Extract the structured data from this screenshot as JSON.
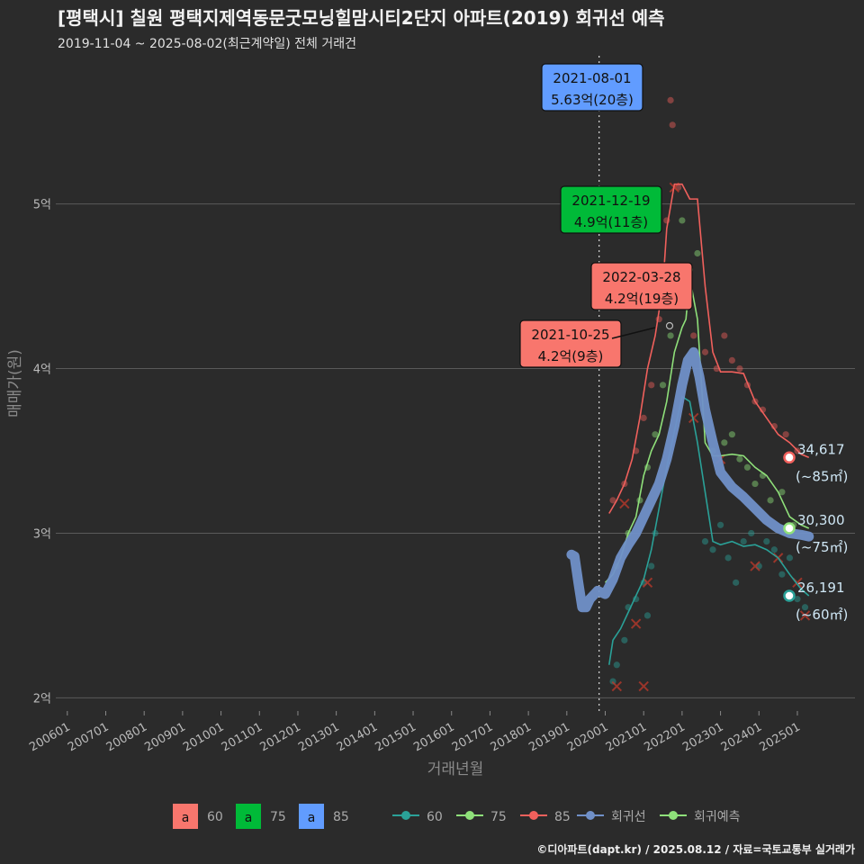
{
  "title": "[평택시] 칠원 평택지제역동문굿모닝힐맘시티2단지 아파트(2019) 회귀선 예측",
  "subtitle": "2019-11-04 ~ 2025-08-02(최근계약일) 전체 거래건",
  "credit": "©디아파트(dapt.kr) / 2025.08.12 / 자료=국토교통부 실거래가",
  "colors": {
    "s60": "#2aa198",
    "s75": "#8fe07a",
    "s85": "#f0605c",
    "regression": "#7090c8",
    "box_blue": "#619cff",
    "box_green": "#00ba38",
    "box_red": "#f8766d"
  },
  "chart_data": {
    "type": "scatter",
    "title": "[평택시] 칠원 평택지제역동문굿모닝힐맘시티2단지 아파트(2019) 회귀선 예측",
    "xlabel": "거래년월",
    "ylabel": "매매가(원)",
    "xlim": [
      2005.7,
      2026.5
    ],
    "ylim": [
      1.92,
      5.9
    ],
    "x_ticks": [
      "200601",
      "200701",
      "200801",
      "200901",
      "201001",
      "201101",
      "201201",
      "201301",
      "201401",
      "201501",
      "201601",
      "201701",
      "201801",
      "201901",
      "202001",
      "202101",
      "202201",
      "202301",
      "202401",
      "202501"
    ],
    "y_ticks": [
      {
        "v": 2,
        "label": "2억"
      },
      {
        "v": 3,
        "label": "3억"
      },
      {
        "v": 4,
        "label": "4억"
      },
      {
        "v": 5,
        "label": "5억"
      }
    ],
    "ref_line_x": 2019.84,
    "series": [
      {
        "name": "60",
        "color_key": "s60",
        "line": [
          [
            2020.1,
            2.2
          ],
          [
            2020.2,
            2.35
          ],
          [
            2020.4,
            2.42
          ],
          [
            2020.6,
            2.52
          ],
          [
            2020.8,
            2.62
          ],
          [
            2021.0,
            2.72
          ],
          [
            2021.2,
            2.9
          ],
          [
            2021.4,
            3.15
          ],
          [
            2021.6,
            3.4
          ],
          [
            2021.8,
            3.62
          ],
          [
            2022.0,
            3.83
          ],
          [
            2022.2,
            3.8
          ],
          [
            2022.4,
            3.55
          ],
          [
            2022.6,
            3.25
          ],
          [
            2022.8,
            2.95
          ],
          [
            2023.0,
            2.93
          ],
          [
            2023.3,
            2.95
          ],
          [
            2023.6,
            2.92
          ],
          [
            2023.9,
            2.93
          ],
          [
            2024.2,
            2.9
          ],
          [
            2024.5,
            2.85
          ],
          [
            2024.8,
            2.75
          ],
          [
            2025.1,
            2.66
          ],
          [
            2025.3,
            2.62
          ]
        ],
        "points": [
          [
            2020.2,
            2.1
          ],
          [
            2020.3,
            2.2
          ],
          [
            2020.5,
            2.35
          ],
          [
            2020.6,
            2.55
          ],
          [
            2020.8,
            2.6
          ],
          [
            2021.0,
            2.7
          ],
          [
            2021.1,
            2.5
          ],
          [
            2021.2,
            2.8
          ],
          [
            2021.3,
            3.0
          ],
          [
            2022.6,
            2.95
          ],
          [
            2022.8,
            2.9
          ],
          [
            2023.0,
            3.05
          ],
          [
            2023.2,
            2.85
          ],
          [
            2023.4,
            2.7
          ],
          [
            2023.6,
            2.95
          ],
          [
            2023.8,
            3.0
          ],
          [
            2024.0,
            2.8
          ],
          [
            2024.2,
            2.95
          ],
          [
            2024.4,
            2.9
          ],
          [
            2024.6,
            2.75
          ],
          [
            2024.8,
            2.85
          ],
          [
            2025.0,
            2.6
          ],
          [
            2025.2,
            2.55
          ]
        ]
      },
      {
        "name": "75",
        "color_key": "s75",
        "line": [
          [
            2020.0,
            2.7
          ],
          [
            2020.2,
            2.75
          ],
          [
            2020.4,
            2.85
          ],
          [
            2020.6,
            3.0
          ],
          [
            2020.8,
            3.1
          ],
          [
            2021.0,
            3.35
          ],
          [
            2021.2,
            3.5
          ],
          [
            2021.4,
            3.6
          ],
          [
            2021.6,
            3.8
          ],
          [
            2021.8,
            4.1
          ],
          [
            2022.0,
            4.25
          ],
          [
            2022.1,
            4.3
          ],
          [
            2022.2,
            4.55
          ],
          [
            2022.4,
            4.3
          ],
          [
            2022.6,
            3.55
          ],
          [
            2022.8,
            3.47
          ],
          [
            2023.0,
            3.47
          ],
          [
            2023.3,
            3.48
          ],
          [
            2023.6,
            3.47
          ],
          [
            2023.9,
            3.4
          ],
          [
            2024.2,
            3.35
          ],
          [
            2024.5,
            3.25
          ],
          [
            2024.8,
            3.1
          ],
          [
            2025.1,
            3.05
          ],
          [
            2025.3,
            3.03
          ]
        ],
        "points": [
          [
            2020.3,
            2.8
          ],
          [
            2020.6,
            3.0
          ],
          [
            2020.9,
            3.2
          ],
          [
            2021.1,
            3.4
          ],
          [
            2021.3,
            3.6
          ],
          [
            2021.5,
            3.9
          ],
          [
            2021.7,
            4.2
          ],
          [
            2021.9,
            4.5
          ],
          [
            2022.0,
            4.9
          ],
          [
            2022.2,
            4.6
          ],
          [
            2022.4,
            4.7
          ],
          [
            2022.8,
            3.5
          ],
          [
            2023.1,
            3.55
          ],
          [
            2023.3,
            3.6
          ],
          [
            2023.5,
            3.45
          ],
          [
            2023.7,
            3.4
          ],
          [
            2023.9,
            3.3
          ],
          [
            2024.1,
            3.35
          ],
          [
            2024.3,
            3.2
          ],
          [
            2024.6,
            3.25
          ],
          [
            2024.9,
            3.05
          ]
        ]
      },
      {
        "name": "85",
        "color_key": "s85",
        "line": [
          [
            2020.1,
            3.12
          ],
          [
            2020.3,
            3.2
          ],
          [
            2020.5,
            3.3
          ],
          [
            2020.7,
            3.45
          ],
          [
            2020.9,
            3.7
          ],
          [
            2021.1,
            4.0
          ],
          [
            2021.3,
            4.2
          ],
          [
            2021.5,
            4.5
          ],
          [
            2021.6,
            4.85
          ],
          [
            2021.8,
            5.12
          ],
          [
            2022.0,
            5.12
          ],
          [
            2022.2,
            5.03
          ],
          [
            2022.4,
            5.03
          ],
          [
            2022.6,
            4.5
          ],
          [
            2022.8,
            4.1
          ],
          [
            2023.0,
            3.98
          ],
          [
            2023.3,
            3.98
          ],
          [
            2023.6,
            3.97
          ],
          [
            2023.9,
            3.8
          ],
          [
            2024.2,
            3.7
          ],
          [
            2024.5,
            3.6
          ],
          [
            2024.8,
            3.55
          ],
          [
            2025.1,
            3.48
          ],
          [
            2025.3,
            3.46
          ]
        ],
        "points": [
          [
            2020.2,
            3.2
          ],
          [
            2020.5,
            3.3
          ],
          [
            2020.8,
            3.5
          ],
          [
            2021.0,
            3.7
          ],
          [
            2021.2,
            3.9
          ],
          [
            2021.4,
            4.3
          ],
          [
            2021.6,
            4.9
          ],
          [
            2021.7,
            5.63
          ],
          [
            2021.75,
            5.48
          ],
          [
            2021.9,
            5.1
          ],
          [
            2022.1,
            4.6
          ],
          [
            2022.3,
            4.2
          ],
          [
            2022.6,
            4.1
          ],
          [
            2022.9,
            4.0
          ],
          [
            2023.1,
            4.2
          ],
          [
            2023.3,
            4.05
          ],
          [
            2023.5,
            4.0
          ],
          [
            2023.7,
            3.9
          ],
          [
            2023.9,
            3.8
          ],
          [
            2024.1,
            3.75
          ],
          [
            2024.4,
            3.65
          ],
          [
            2024.7,
            3.6
          ],
          [
            2025.0,
            3.5
          ]
        ]
      }
    ],
    "cross_points": [
      [
        2020.3,
        2.07
      ],
      [
        2020.5,
        3.18
      ],
      [
        2020.8,
        2.45
      ],
      [
        2021.0,
        2.07
      ],
      [
        2021.1,
        2.7
      ],
      [
        2021.8,
        5.1
      ],
      [
        2022.3,
        3.7
      ],
      [
        2023.0,
        3.45
      ],
      [
        2023.9,
        2.8
      ],
      [
        2024.5,
        2.85
      ],
      [
        2025.0,
        2.7
      ],
      [
        2025.2,
        2.5
      ]
    ],
    "regression": [
      [
        2019.12,
        2.87
      ],
      [
        2019.2,
        2.86
      ],
      [
        2019.3,
        2.7
      ],
      [
        2019.4,
        2.55
      ],
      [
        2019.5,
        2.55
      ],
      [
        2019.6,
        2.6
      ],
      [
        2019.8,
        2.65
      ],
      [
        2020.0,
        2.63
      ],
      [
        2020.2,
        2.72
      ],
      [
        2020.4,
        2.85
      ],
      [
        2020.6,
        2.93
      ],
      [
        2020.8,
        3.0
      ],
      [
        2021.0,
        3.1
      ],
      [
        2021.2,
        3.2
      ],
      [
        2021.4,
        3.3
      ],
      [
        2021.6,
        3.45
      ],
      [
        2021.8,
        3.65
      ],
      [
        2022.0,
        3.9
      ],
      [
        2022.15,
        4.05
      ],
      [
        2022.3,
        4.1
      ],
      [
        2022.45,
        3.95
      ],
      [
        2022.6,
        3.75
      ],
      [
        2022.8,
        3.55
      ],
      [
        2023.0,
        3.37
      ],
      [
        2023.3,
        3.28
      ],
      [
        2023.6,
        3.22
      ],
      [
        2023.9,
        3.15
      ],
      [
        2024.2,
        3.08
      ],
      [
        2024.5,
        3.03
      ],
      [
        2024.8,
        3.0
      ],
      [
        2025.1,
        2.99
      ],
      [
        2025.3,
        2.98
      ]
    ],
    "annotations": [
      {
        "date": "2021-08-01",
        "price": "5.63억(20층)",
        "color_key": "box_blue",
        "x": 2019.9,
        "y": 5.63,
        "box_x": "center"
      },
      {
        "date": "2021-12-19",
        "price": "4.9억(11층)",
        "color_key": "box_green",
        "x": 2020.3,
        "y": 4.9,
        "box_x": "right"
      },
      {
        "date": "2022-03-28",
        "price": "4.2억(19층)",
        "color_key": "box_red",
        "x": 2022.2,
        "y": 4.2,
        "box_x": "center"
      },
      {
        "date": "2021-10-25",
        "price": "4.2억(9층)",
        "color_key": "box_red",
        "x": 2019.1,
        "y": 4.2,
        "box_x": "left"
      }
    ],
    "end_labels": [
      {
        "value": "34,617",
        "area": "(~85㎡)",
        "color_key": "s85",
        "y": 3.46
      },
      {
        "value": "30,300",
        "area": "(~75㎡)",
        "color_key": "s75",
        "y": 3.03
      },
      {
        "value": "26,191",
        "area": "(~60㎡)",
        "color_key": "s60",
        "y": 2.62
      }
    ],
    "legend_boxes": [
      {
        "label": "60",
        "color_key": "box_red",
        "glyph": "a"
      },
      {
        "label": "75",
        "color_key": "box_green",
        "glyph": "a"
      },
      {
        "label": "85",
        "color_key": "box_blue",
        "glyph": "a"
      }
    ],
    "legend_lines": [
      {
        "label": "60",
        "color_key": "s60"
      },
      {
        "label": "75",
        "color_key": "s75"
      },
      {
        "label": "85",
        "color_key": "s85"
      },
      {
        "label": "회귀선",
        "color_key": "regression"
      },
      {
        "label": "회귀예측",
        "color_key": "s75"
      }
    ]
  }
}
